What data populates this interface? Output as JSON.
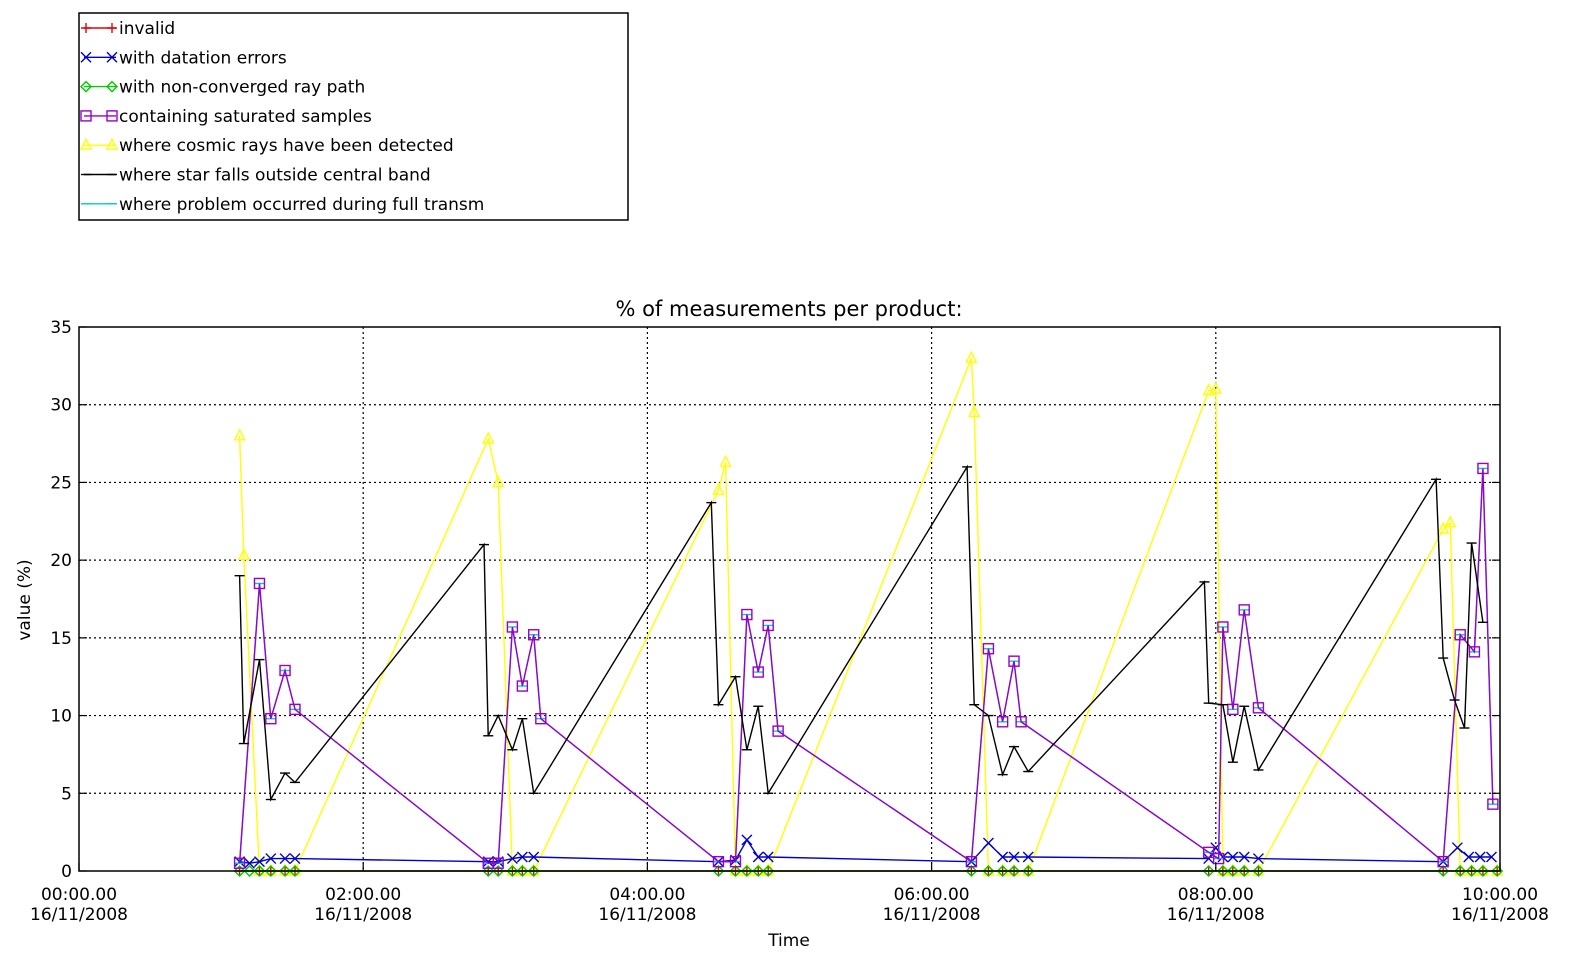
{
  "chart_data": {
    "type": "line",
    "title": "% of measurements per product:",
    "xlabel": "Time",
    "ylabel": "value (%)",
    "ylim": [
      0,
      35
    ],
    "xlim_hours": [
      0,
      10
    ],
    "y_ticks": [
      "0",
      "5",
      "10",
      "15",
      "20",
      "25",
      "30",
      "35"
    ],
    "x_ticks": [
      {
        "time": "00:00.00",
        "date": "16/11/2008"
      },
      {
        "time": "02:00.00",
        "date": "16/11/2008"
      },
      {
        "time": "04:00.00",
        "date": "16/11/2008"
      },
      {
        "time": "06:00.00",
        "date": "16/11/2008"
      },
      {
        "time": "08:00.00",
        "date": "16/11/2008"
      },
      {
        "time": "10:00.00",
        "date": "16/11/2008"
      }
    ],
    "grid": true,
    "legend_position": "top-left, above plot",
    "series": [
      {
        "name": "invalid",
        "color": "#e8000b",
        "marker": "plus",
        "points": [
          [
            1.13,
            0
          ],
          [
            1.27,
            0
          ],
          [
            1.35,
            0
          ],
          [
            1.45,
            0
          ],
          [
            1.52,
            0
          ],
          [
            2.88,
            0
          ],
          [
            2.95,
            0
          ],
          [
            3.05,
            0
          ],
          [
            3.12,
            0
          ],
          [
            3.2,
            0
          ],
          [
            4.5,
            0
          ],
          [
            4.62,
            0
          ],
          [
            4.7,
            0
          ],
          [
            4.78,
            0
          ],
          [
            4.85,
            0
          ],
          [
            6.28,
            0
          ],
          [
            6.4,
            0
          ],
          [
            6.5,
            0
          ],
          [
            6.58,
            0
          ],
          [
            6.68,
            0
          ],
          [
            7.95,
            0
          ],
          [
            8.05,
            0
          ],
          [
            8.12,
            0
          ],
          [
            8.2,
            0
          ],
          [
            8.3,
            0
          ],
          [
            9.6,
            0
          ],
          [
            9.72,
            0
          ],
          [
            9.8,
            0
          ],
          [
            9.88,
            0
          ],
          [
            9.98,
            0
          ]
        ]
      },
      {
        "name": "with datation errors",
        "color": "#0000cc",
        "marker": "x",
        "points": [
          [
            1.13,
            0.6
          ],
          [
            1.2,
            0.5
          ],
          [
            1.27,
            0.6
          ],
          [
            1.35,
            0.8
          ],
          [
            1.45,
            0.8
          ],
          [
            1.52,
            0.8
          ],
          [
            2.88,
            0.6
          ],
          [
            2.95,
            0.6
          ],
          [
            3.05,
            0.8
          ],
          [
            3.12,
            0.9
          ],
          [
            3.2,
            0.9
          ],
          [
            4.5,
            0.6
          ],
          [
            4.62,
            0.7
          ],
          [
            4.7,
            2.0
          ],
          [
            4.78,
            0.9
          ],
          [
            4.85,
            0.9
          ],
          [
            6.28,
            0.6
          ],
          [
            6.4,
            1.8
          ],
          [
            6.5,
            0.9
          ],
          [
            6.58,
            0.9
          ],
          [
            6.68,
            0.9
          ],
          [
            7.95,
            0.8
          ],
          [
            8.0,
            1.5
          ],
          [
            8.05,
            0.9
          ],
          [
            8.12,
            0.9
          ],
          [
            8.2,
            0.9
          ],
          [
            8.3,
            0.8
          ],
          [
            9.6,
            0.6
          ],
          [
            9.7,
            1.5
          ],
          [
            9.78,
            0.9
          ],
          [
            9.86,
            0.9
          ],
          [
            9.94,
            0.9
          ]
        ]
      },
      {
        "name": "with non-converged ray path",
        "color": "#00cc00",
        "marker": "diamond",
        "points": [
          [
            1.13,
            0
          ],
          [
            1.2,
            0
          ],
          [
            1.27,
            0
          ],
          [
            1.35,
            0
          ],
          [
            1.45,
            0
          ],
          [
            1.52,
            0
          ],
          [
            2.88,
            0
          ],
          [
            2.95,
            0
          ],
          [
            3.05,
            0
          ],
          [
            3.12,
            0
          ],
          [
            3.2,
            0
          ],
          [
            4.5,
            0
          ],
          [
            4.62,
            0
          ],
          [
            4.7,
            0
          ],
          [
            4.78,
            0
          ],
          [
            4.85,
            0
          ],
          [
            6.28,
            0
          ],
          [
            6.4,
            0
          ],
          [
            6.5,
            0
          ],
          [
            6.58,
            0
          ],
          [
            6.68,
            0
          ],
          [
            7.95,
            0
          ],
          [
            8.05,
            0
          ],
          [
            8.12,
            0
          ],
          [
            8.2,
            0
          ],
          [
            8.3,
            0
          ],
          [
            9.6,
            0
          ],
          [
            9.72,
            0
          ],
          [
            9.8,
            0
          ],
          [
            9.88,
            0
          ],
          [
            9.98,
            0
          ]
        ]
      },
      {
        "name": "containing saturated samples",
        "color": "#9900cc",
        "marker": "square",
        "points": [
          [
            1.13,
            0.5
          ],
          [
            1.27,
            18.5
          ],
          [
            1.35,
            9.8
          ],
          [
            1.45,
            12.9
          ],
          [
            1.52,
            10.4
          ],
          [
            2.88,
            0.5
          ],
          [
            2.95,
            0.5
          ],
          [
            3.05,
            15.7
          ],
          [
            3.12,
            11.9
          ],
          [
            3.2,
            15.2
          ],
          [
            3.25,
            9.8
          ],
          [
            4.5,
            0.6
          ],
          [
            4.62,
            0.6
          ],
          [
            4.7,
            16.5
          ],
          [
            4.78,
            12.8
          ],
          [
            4.85,
            15.8
          ],
          [
            4.92,
            9.0
          ],
          [
            6.28,
            0.6
          ],
          [
            6.4,
            14.3
          ],
          [
            6.5,
            9.6
          ],
          [
            6.58,
            13.5
          ],
          [
            6.63,
            9.6
          ],
          [
            7.95,
            1.2
          ],
          [
            8.02,
            0.8
          ],
          [
            8.05,
            15.7
          ],
          [
            8.12,
            10.4
          ],
          [
            8.2,
            16.8
          ],
          [
            8.3,
            10.5
          ],
          [
            9.6,
            0.6
          ],
          [
            9.72,
            15.2
          ],
          [
            9.82,
            14.1
          ],
          [
            9.88,
            25.9
          ],
          [
            9.95,
            4.3
          ]
        ]
      },
      {
        "name": "where cosmic rays have been detected",
        "color": "#ffff00",
        "marker": "triangle",
        "points": [
          [
            1.13,
            28.0
          ],
          [
            1.16,
            20.3
          ],
          [
            1.27,
            0
          ],
          [
            1.35,
            0
          ],
          [
            1.45,
            0
          ],
          [
            1.52,
            0
          ],
          [
            2.88,
            27.8
          ],
          [
            2.95,
            25.0
          ],
          [
            3.05,
            0
          ],
          [
            3.12,
            0
          ],
          [
            3.2,
            0
          ],
          [
            4.5,
            24.5
          ],
          [
            4.55,
            26.3
          ],
          [
            4.62,
            0
          ],
          [
            4.7,
            0
          ],
          [
            4.78,
            0
          ],
          [
            4.85,
            0
          ],
          [
            6.28,
            33.0
          ],
          [
            6.3,
            29.5
          ],
          [
            6.4,
            0
          ],
          [
            6.5,
            0
          ],
          [
            6.58,
            0
          ],
          [
            6.68,
            0
          ],
          [
            7.95,
            30.9
          ],
          [
            8.0,
            31.0
          ],
          [
            8.05,
            0
          ],
          [
            8.12,
            0
          ],
          [
            8.2,
            0
          ],
          [
            8.3,
            0
          ],
          [
            9.6,
            22.0
          ],
          [
            9.65,
            22.4
          ],
          [
            9.72,
            0
          ],
          [
            9.8,
            0
          ],
          [
            9.88,
            0
          ],
          [
            9.98,
            0
          ]
        ]
      },
      {
        "name": "where star falls outside central band",
        "color": "#000000",
        "marker": "bar",
        "points": [
          [
            1.13,
            19.0
          ],
          [
            1.16,
            8.2
          ],
          [
            1.27,
            13.6
          ],
          [
            1.35,
            4.6
          ],
          [
            1.45,
            6.3
          ],
          [
            1.52,
            5.7
          ],
          [
            2.85,
            21.0
          ],
          [
            2.88,
            8.7
          ],
          [
            2.95,
            10.0
          ],
          [
            3.05,
            7.8
          ],
          [
            3.12,
            9.8
          ],
          [
            3.2,
            5.0
          ],
          [
            4.45,
            23.7
          ],
          [
            4.5,
            10.7
          ],
          [
            4.62,
            12.5
          ],
          [
            4.7,
            7.8
          ],
          [
            4.78,
            10.6
          ],
          [
            4.85,
            5.0
          ],
          [
            6.25,
            26.0
          ],
          [
            6.3,
            10.7
          ],
          [
            6.4,
            10.0
          ],
          [
            6.5,
            6.2
          ],
          [
            6.58,
            8.0
          ],
          [
            6.68,
            6.4
          ],
          [
            7.92,
            18.6
          ],
          [
            7.95,
            10.8
          ],
          [
            8.05,
            10.7
          ],
          [
            8.12,
            7.0
          ],
          [
            8.2,
            10.6
          ],
          [
            8.3,
            6.5
          ],
          [
            9.55,
            25.2
          ],
          [
            9.6,
            13.7
          ],
          [
            9.68,
            11.0
          ],
          [
            9.75,
            9.2
          ],
          [
            9.8,
            21.1
          ],
          [
            9.88,
            16.0
          ]
        ]
      },
      {
        "name": "where problem occurred during full transm",
        "color": "#00ccdd",
        "marker": "bar",
        "points": [
          [
            1.13,
            0.5
          ],
          [
            1.27,
            18.5
          ],
          [
            1.35,
            9.8
          ],
          [
            1.45,
            12.9
          ],
          [
            1.52,
            10.4
          ],
          [
            2.88,
            0.5
          ],
          [
            2.95,
            0.5
          ],
          [
            3.05,
            15.7
          ],
          [
            3.12,
            11.9
          ],
          [
            3.2,
            15.2
          ],
          [
            3.25,
            9.8
          ],
          [
            4.5,
            0.6
          ],
          [
            4.62,
            0.6
          ],
          [
            4.7,
            16.5
          ],
          [
            4.78,
            12.8
          ],
          [
            4.85,
            15.8
          ],
          [
            4.92,
            9.0
          ],
          [
            6.28,
            0.6
          ],
          [
            6.4,
            14.3
          ],
          [
            6.5,
            9.6
          ],
          [
            6.58,
            13.5
          ],
          [
            6.63,
            9.6
          ],
          [
            7.95,
            1.2
          ],
          [
            8.02,
            0.8
          ],
          [
            8.05,
            15.7
          ],
          [
            8.12,
            10.4
          ],
          [
            8.2,
            16.8
          ],
          [
            8.3,
            10.5
          ],
          [
            9.6,
            0.6
          ],
          [
            9.72,
            15.2
          ],
          [
            9.82,
            14.1
          ],
          [
            9.88,
            25.9
          ],
          [
            9.95,
            4.3
          ]
        ]
      }
    ]
  }
}
